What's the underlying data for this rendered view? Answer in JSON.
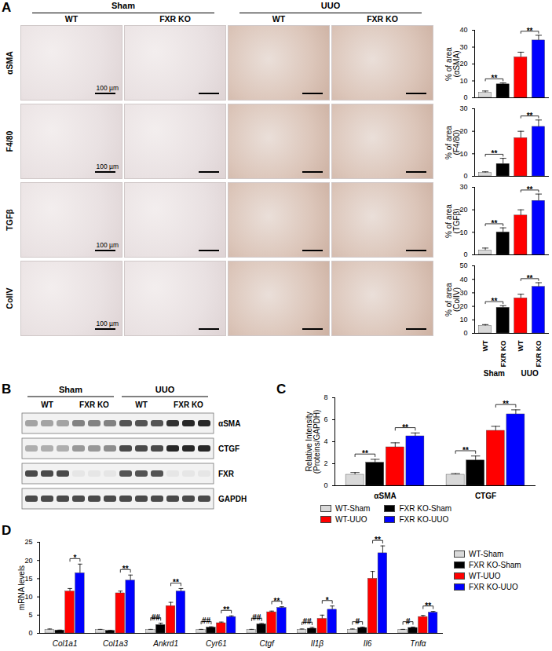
{
  "figure": {
    "panels": {
      "A": {
        "label": "A",
        "conditions": [
          {
            "label": "Sham",
            "columns": [
              "WT",
              "FXR KO"
            ]
          },
          {
            "label": "UUO",
            "columns": [
              "WT",
              "FXR KO"
            ]
          }
        ],
        "rows": [
          "αSMA",
          "F4/80",
          "TGFβ",
          "ColIV"
        ],
        "scale_bar": "100 µm"
      },
      "B": {
        "label": "B",
        "conditions": [
          {
            "label": "Sham",
            "lanes": [
              {
                "label": "WT",
                "count": 3
              },
              {
                "label": "FXR KO",
                "count": 3
              }
            ]
          },
          {
            "label": "UUO",
            "lanes": [
              {
                "label": "WT",
                "count": 3
              },
              {
                "label": "FXR KO",
                "count": 3
              }
            ]
          }
        ],
        "blots": [
          {
            "label": "αSMA",
            "intensities": [
              0.35,
              0.35,
              0.35,
              0.5,
              0.5,
              0.5,
              0.7,
              0.7,
              0.7,
              0.85,
              0.9,
              0.9
            ]
          },
          {
            "label": "CTGF",
            "intensities": [
              0.3,
              0.3,
              0.3,
              0.4,
              0.4,
              0.45,
              0.75,
              0.75,
              0.75,
              0.9,
              0.9,
              0.9
            ]
          },
          {
            "label": "FXR",
            "intensities": [
              0.75,
              0.75,
              0.75,
              0.05,
              0.05,
              0.05,
              0.7,
              0.7,
              0.7,
              0.05,
              0.05,
              0.05
            ]
          },
          {
            "label": "GAPDH",
            "intensities": [
              0.75,
              0.75,
              0.75,
              0.75,
              0.75,
              0.75,
              0.75,
              0.75,
              0.75,
              0.75,
              0.75,
              0.75
            ]
          }
        ]
      },
      "C": {
        "label": "C"
      },
      "D": {
        "label": "D"
      }
    }
  },
  "chart_data": [
    {
      "type": "bar",
      "categories": [
        null,
        null,
        null,
        null
      ],
      "tick_labels": "y",
      "values": [
        3,
        8,
        24,
        34
      ],
      "errors": [
        1,
        0.8,
        3,
        3
      ],
      "colors": [
        "#d9d9d9",
        "#000000",
        "#ff0000",
        "#0000ff"
      ],
      "ylim": [
        0,
        40
      ],
      "yticks": [
        0,
        10,
        20,
        30,
        40
      ],
      "ylabel": "% of area (αSMA)",
      "annotations": [
        {
          "categories": [
            0,
            1
          ],
          "text": "**"
        },
        {
          "categories": [
            2,
            3
          ],
          "text": "**"
        }
      ]
    },
    {
      "type": "bar",
      "categories": [
        null,
        null,
        null,
        null
      ],
      "tick_labels": "y",
      "values": [
        1.5,
        5.5,
        17,
        22
      ],
      "errors": [
        0.5,
        2.5,
        3,
        3
      ],
      "colors": [
        "#d9d9d9",
        "#000000",
        "#ff0000",
        "#0000ff"
      ],
      "ylim": [
        0,
        30
      ],
      "yticks": [
        0,
        10,
        20,
        30
      ],
      "ylabel": "% of area (F4/80)",
      "annotations": [
        {
          "categories": [
            0,
            1
          ],
          "text": "**"
        },
        {
          "categories": [
            2,
            3
          ],
          "text": "**"
        }
      ]
    },
    {
      "type": "bar",
      "categories": [
        null,
        null,
        null,
        null
      ],
      "tick_labels": "y",
      "values": [
        2,
        10,
        17.5,
        24
      ],
      "errors": [
        1,
        2,
        2.5,
        3
      ],
      "colors": [
        "#d9d9d9",
        "#000000",
        "#ff0000",
        "#0000ff"
      ],
      "ylim": [
        0,
        30
      ],
      "yticks": [
        0,
        10,
        20,
        30
      ],
      "ylabel": "% of area (TGFβ)",
      "annotations": [
        {
          "categories": [
            0,
            1
          ],
          "text": "**"
        },
        {
          "categories": [
            2,
            3
          ],
          "text": "**"
        }
      ]
    },
    {
      "type": "bar",
      "categories": [
        "WT",
        "FXR KO",
        "WT",
        "FXR KO"
      ],
      "groups": [
        {
          "label": "Sham",
          "categories": [
            0,
            1
          ]
        },
        {
          "label": "UUO",
          "categories": [
            2,
            3
          ]
        }
      ],
      "values": [
        5.5,
        19,
        26,
        34.5
      ],
      "errors": [
        1,
        1.5,
        3,
        3
      ],
      "colors": [
        "#d9d9d9",
        "#000000",
        "#ff0000",
        "#0000ff"
      ],
      "ylim": [
        0,
        50
      ],
      "yticks": [
        0,
        10,
        20,
        30,
        40,
        50
      ],
      "ylabel": "% of area (ColIV)",
      "annotations": [
        {
          "categories": [
            0,
            1
          ],
          "text": "**"
        },
        {
          "categories": [
            2,
            3
          ],
          "text": "**"
        }
      ]
    },
    {
      "type": "bar",
      "categories": [
        "αSMA",
        "CTGF"
      ],
      "series": [
        {
          "name": "WT-Sham",
          "color": "#d9d9d9",
          "values": [
            1.0,
            1.0
          ],
          "errors": [
            0.2,
            0.1
          ]
        },
        {
          "name": "FXR KO-Sham",
          "color": "#000000",
          "values": [
            2.1,
            2.3
          ],
          "errors": [
            0.3,
            0.4
          ]
        },
        {
          "name": "WT-UUO",
          "color": "#ff0000",
          "values": [
            3.5,
            5.0
          ],
          "errors": [
            0.4,
            0.4
          ]
        },
        {
          "name": "FXR KO-UUO",
          "color": "#0000ff",
          "values": [
            4.5,
            6.5
          ],
          "errors": [
            0.3,
            0.4
          ]
        }
      ],
      "ylim": [
        0,
        8
      ],
      "yticks": [
        0,
        2,
        4,
        6,
        8
      ],
      "ylabel": "Relative Intensity (Proteins/GAPDH)",
      "legend": "bottom",
      "annotations": [
        {
          "category": 0,
          "series": [
            0,
            1
          ],
          "text": "**"
        },
        {
          "category": 0,
          "series": [
            2,
            3
          ],
          "text": "**"
        },
        {
          "category": 1,
          "series": [
            0,
            1
          ],
          "text": "**"
        },
        {
          "category": 1,
          "series": [
            2,
            3
          ],
          "text": "**"
        }
      ]
    },
    {
      "type": "bar",
      "categories": [
        "Col1a1",
        "Col1a3",
        "Ankrd1",
        "Cyr61",
        "Ctgf",
        "Il1β",
        "Il6",
        "Tnfα"
      ],
      "series": [
        {
          "name": "WT-Sham",
          "color": "#d9d9d9",
          "values": [
            1,
            1,
            1,
            1,
            1,
            1,
            1,
            1
          ],
          "errors": [
            0.2,
            0.1,
            0.1,
            0.1,
            0.1,
            0.2,
            0.2,
            0.1
          ]
        },
        {
          "name": "FXR KO-Sham",
          "color": "#000000",
          "values": [
            0.8,
            0.7,
            2.3,
            1.6,
            2.5,
            1.3,
            1.5,
            1.5
          ],
          "errors": [
            0.1,
            0.1,
            0.5,
            0.2,
            0.2,
            0.3,
            0.2,
            0.2
          ]
        },
        {
          "name": "WT-UUO",
          "color": "#ff0000",
          "values": [
            11.5,
            11,
            7.5,
            2.8,
            5.8,
            4,
            15,
            4.5
          ],
          "errors": [
            0.8,
            0.6,
            1,
            0.3,
            0.3,
            1,
            2,
            0.4
          ]
        },
        {
          "name": "FXR KO-UUO",
          "color": "#0000ff",
          "values": [
            16.5,
            14.5,
            11.5,
            4.5,
            7,
            6.5,
            22,
            5.7
          ],
          "errors": [
            2.5,
            1.5,
            0.8,
            0.3,
            0.3,
            1,
            2,
            0.3
          ]
        }
      ],
      "ylim": [
        0,
        25
      ],
      "yticks": [
        0,
        5,
        10,
        15,
        20,
        25
      ],
      "ylabel": "mRNA levels",
      "legend": "right",
      "annotations": [
        {
          "category": 0,
          "series": [
            2,
            3
          ],
          "text": "*"
        },
        {
          "category": 1,
          "series": [
            2,
            3
          ],
          "text": "**"
        },
        {
          "category": 2,
          "series": [
            0,
            1
          ],
          "text": "##"
        },
        {
          "category": 2,
          "series": [
            2,
            3
          ],
          "text": "**"
        },
        {
          "category": 3,
          "series": [
            0,
            1
          ],
          "text": "##"
        },
        {
          "category": 3,
          "series": [
            2,
            3
          ],
          "text": "**"
        },
        {
          "category": 4,
          "series": [
            0,
            1
          ],
          "text": "##"
        },
        {
          "category": 4,
          "series": [
            2,
            3
          ],
          "text": "**"
        },
        {
          "category": 5,
          "series": [
            0,
            1
          ],
          "text": "##"
        },
        {
          "category": 5,
          "series": [
            2,
            3
          ],
          "text": "*"
        },
        {
          "category": 6,
          "series": [
            0,
            1
          ],
          "text": "#"
        },
        {
          "category": 6,
          "series": [
            2,
            3
          ],
          "text": "**"
        },
        {
          "category": 7,
          "series": [
            0,
            1
          ],
          "text": "#"
        },
        {
          "category": 7,
          "series": [
            2,
            3
          ],
          "text": "**"
        }
      ]
    }
  ]
}
